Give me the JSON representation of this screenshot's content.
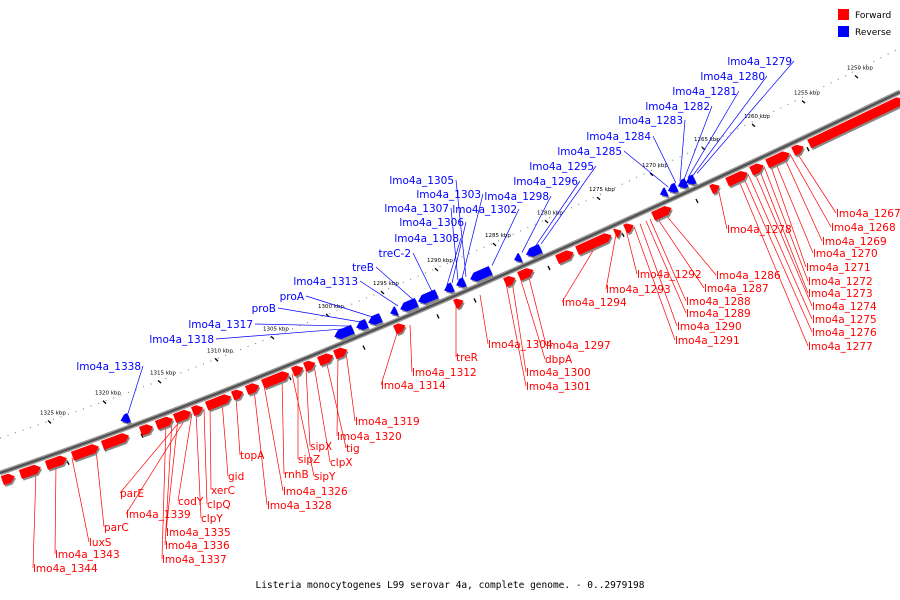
{
  "caption": "Listeria monocytogenes L99 serovar 4a, complete genome. - 0..2979198",
  "legend": {
    "forward": {
      "label": "Forward",
      "color": "#ff0000"
    },
    "reverse": {
      "label": "Reverse",
      "color": "#0000ff"
    }
  },
  "ticks": [
    "1250 kbp",
    "1255 kbp",
    "1260 kbp",
    "1265 kbp",
    "1270 kbp",
    "1275 kbp",
    "1280 kbp",
    "1285 kbp",
    "1290 kbp",
    "1295 kbp",
    "1300 kbp",
    "1305 kbp",
    "1310 kbp",
    "1315 kbp",
    "1320 kbp",
    "1325 kbp"
  ],
  "reverse_genes": [
    "lmo4a_1279",
    "lmo4a_1280",
    "lmo4a_1281",
    "lmo4a_1282",
    "lmo4a_1283",
    "lmo4a_1284",
    "lmo4a_1285",
    "lmo4a_1295",
    "lmo4a_1296",
    "lmo4a_1298",
    "lmo4a_1305",
    "lmo4a_1303",
    "lmo4a_1302",
    "lmo4a_1307",
    "lmo4a_1306",
    "lmo4a_1308",
    "treC-2",
    "treB",
    "lmo4a_1313",
    "proA",
    "proB",
    "lmo4a_1317",
    "lmo4a_1318",
    "lmo4a_1338"
  ],
  "forward_genes": [
    "lmo4a_1267",
    "lmo4a_1268",
    "lmo4a_1269",
    "lmo4a_1278",
    "lmo4a_1270",
    "lmo4a_1271",
    "lmo4a_1272",
    "lmo4a_1273",
    "lmo4a_1274",
    "lmo4a_1275",
    "lmo4a_1276",
    "lmo4a_1277",
    "lmo4a_1286",
    "lmo4a_1287",
    "lmo4a_1288",
    "lmo4a_1289",
    "lmo4a_1290",
    "lmo4a_1291",
    "lmo4a_1292",
    "lmo4a_1293",
    "lmo4a_1294",
    "lmo4a_1297",
    "dbpA",
    "lmo4a_1300",
    "lmo4a_1301",
    "lmo4a_1304",
    "treR",
    "lmo4a_1312",
    "lmo4a_1314",
    "lmo4a_1319",
    "lmo4a_1320",
    "tig",
    "clpX",
    "sipX",
    "sipZ",
    "sipY",
    "rnhB",
    "lmo4a_1326",
    "lmo4a_1328",
    "topA",
    "gid",
    "xerC",
    "clpQ",
    "clpY",
    "codY",
    "lmo4a_1339",
    "parE",
    "lmo4a_1335",
    "lmo4a_1336",
    "lmo4a_1337",
    "parC",
    "luxS",
    "lmo4a_1343",
    "lmo4a_1344"
  ]
}
